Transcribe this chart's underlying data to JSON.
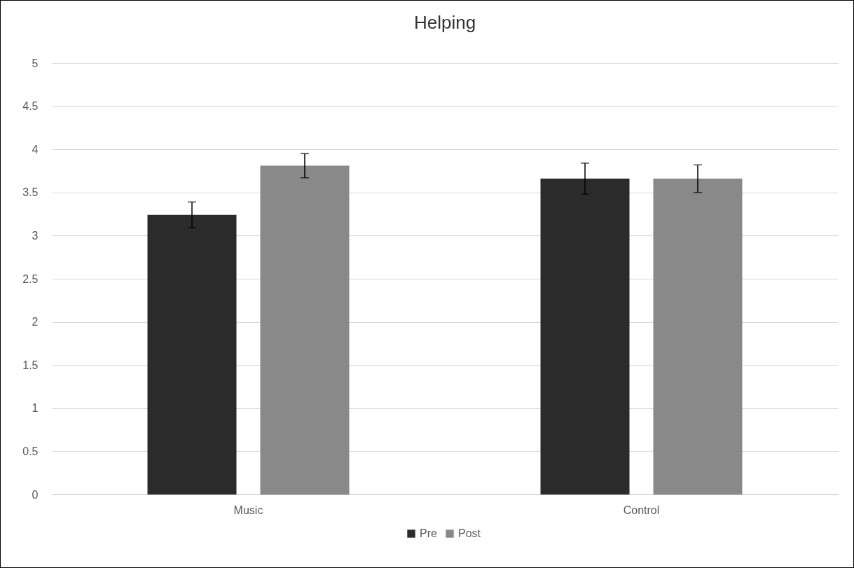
{
  "chart_data": {
    "type": "bar",
    "title": "Helping",
    "categories": [
      "Music",
      "Control"
    ],
    "series": [
      {
        "name": "Pre",
        "color": "#2b2b2b",
        "values": [
          3.24,
          3.66
        ],
        "errors": [
          0.15,
          0.18
        ]
      },
      {
        "name": "Post",
        "color": "#898989",
        "values": [
          3.81,
          3.66
        ],
        "errors": [
          0.14,
          0.16
        ]
      }
    ],
    "ylim": [
      0,
      5
    ],
    "yticks": [
      0,
      0.5,
      1,
      1.5,
      2,
      2.5,
      3,
      3.5,
      4,
      4.5,
      5
    ],
    "grid": "y",
    "legend": "bottom"
  }
}
